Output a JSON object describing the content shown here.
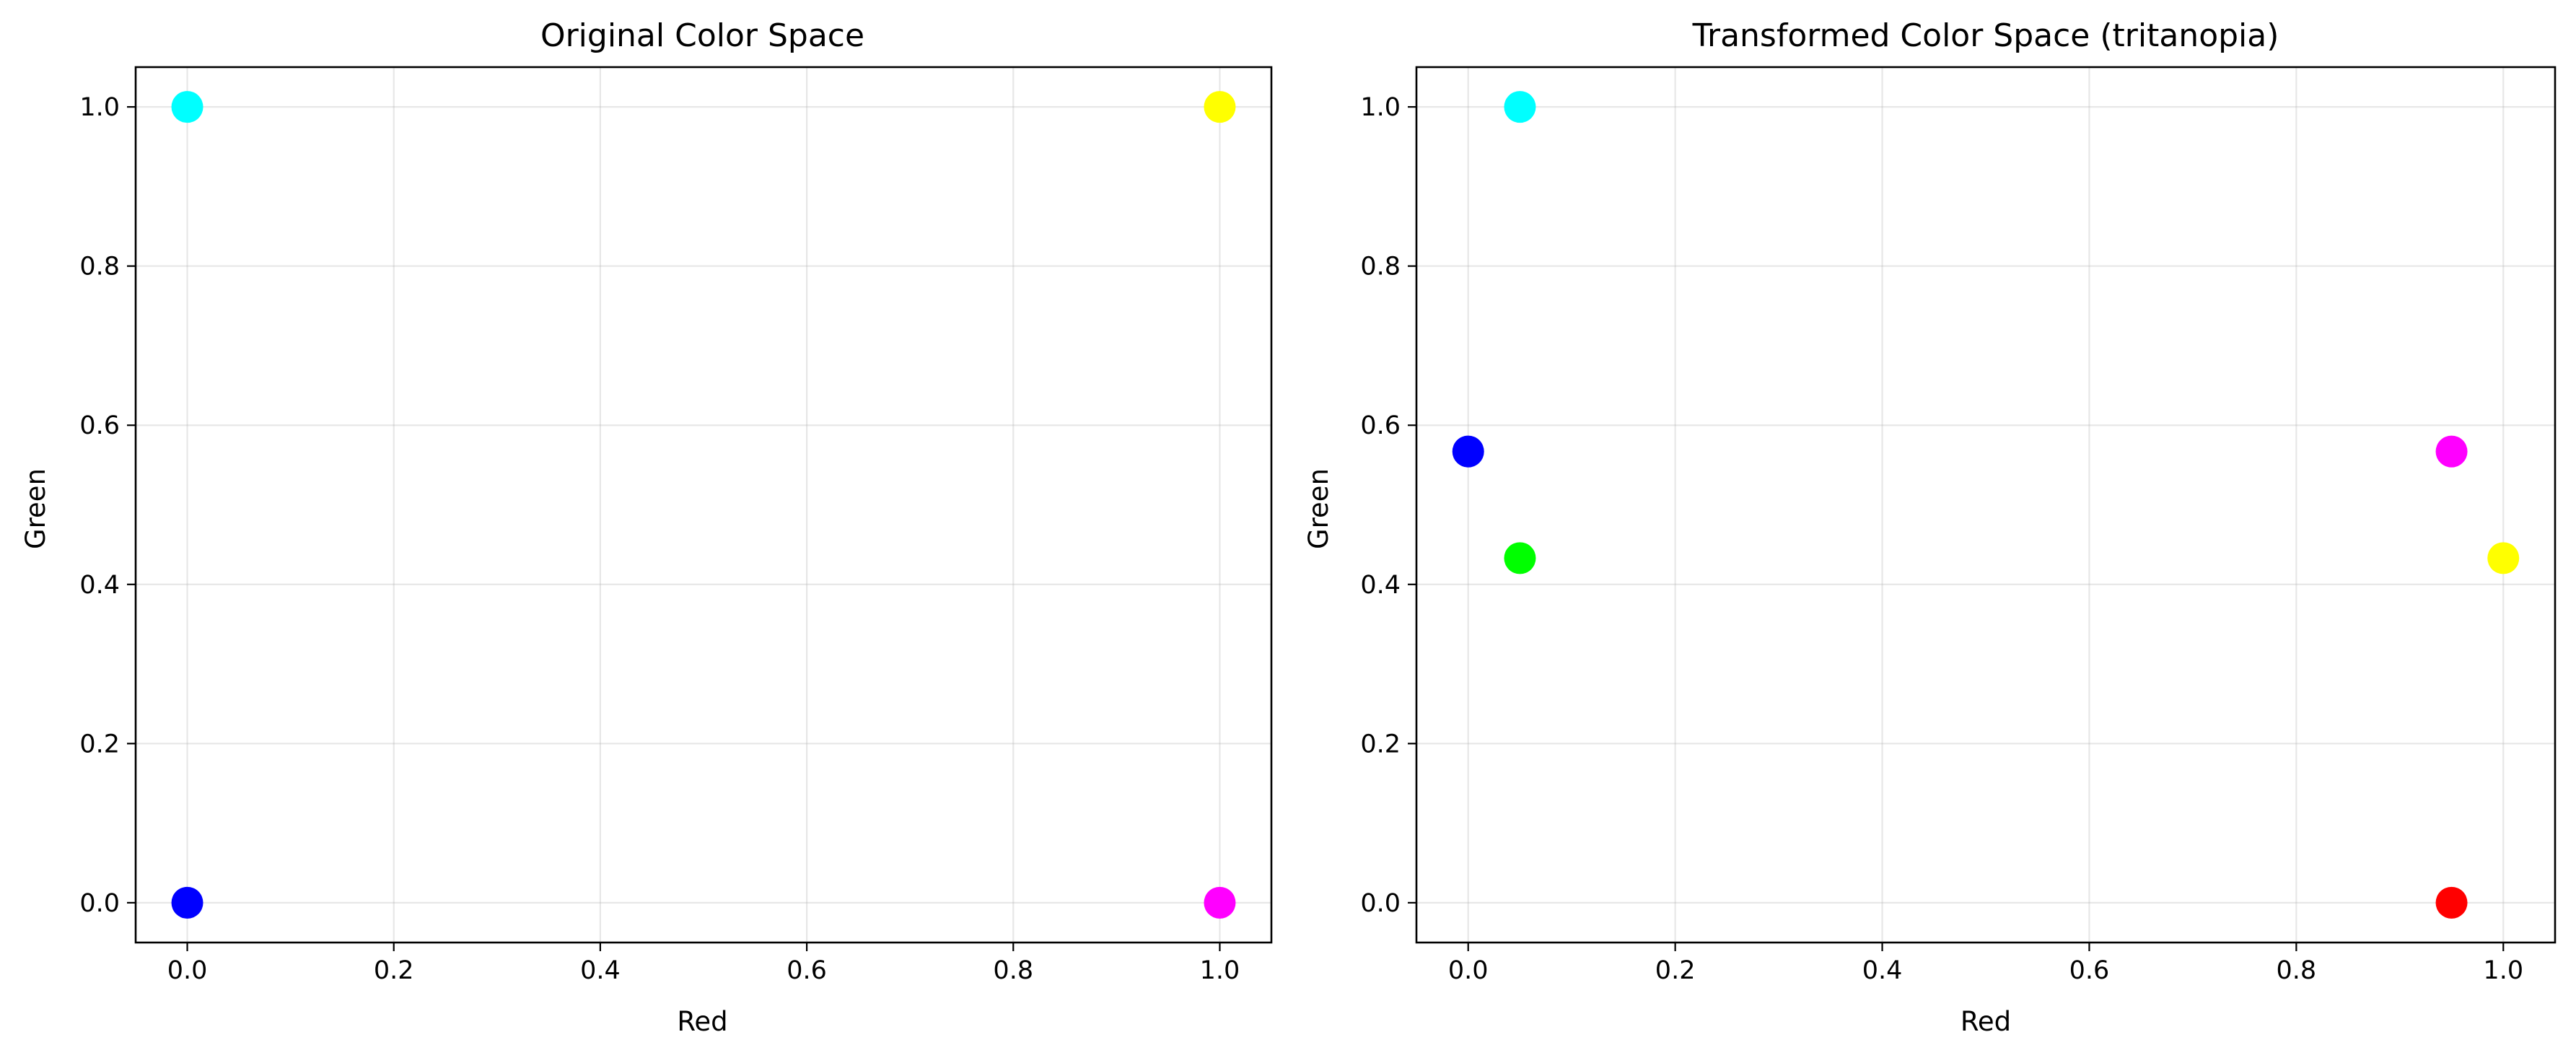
{
  "chart_data": [
    {
      "type": "scatter",
      "title": "Original Color Space",
      "xlabel": "Red",
      "ylabel": "Green",
      "xlim": [
        -0.05,
        1.05
      ],
      "ylim": [
        -0.05,
        1.05
      ],
      "xticks": [
        "0.0",
        "0.2",
        "0.4",
        "0.6",
        "0.8",
        "1.0"
      ],
      "yticks": [
        "0.0",
        "0.2",
        "0.4",
        "0.6",
        "0.8",
        "1.0"
      ],
      "grid": true,
      "points": [
        {
          "x": 0.0,
          "y": 1.0,
          "color": "#00ffff"
        },
        {
          "x": 1.0,
          "y": 1.0,
          "color": "#ffff00"
        },
        {
          "x": 0.0,
          "y": 0.0,
          "color": "#0000ff"
        },
        {
          "x": 1.0,
          "y": 0.0,
          "color": "#ff00ff"
        }
      ]
    },
    {
      "type": "scatter",
      "title": "Transformed Color Space (tritanopia)",
      "xlabel": "Red",
      "ylabel": "Green",
      "xlim": [
        -0.05,
        1.05
      ],
      "ylim": [
        -0.05,
        1.05
      ],
      "xticks": [
        "0.0",
        "0.2",
        "0.4",
        "0.6",
        "0.8",
        "1.0"
      ],
      "yticks": [
        "0.0",
        "0.2",
        "0.4",
        "0.6",
        "0.8",
        "1.0"
      ],
      "grid": true,
      "points": [
        {
          "x": 0.05,
          "y": 1.0,
          "color": "#00ffff"
        },
        {
          "x": 0.0,
          "y": 0.567,
          "color": "#0000ff"
        },
        {
          "x": 0.05,
          "y": 0.433,
          "color": "#00ff00"
        },
        {
          "x": 0.95,
          "y": 0.567,
          "color": "#ff00ff"
        },
        {
          "x": 1.0,
          "y": 0.433,
          "color": "#ffff00"
        },
        {
          "x": 0.95,
          "y": 0.0,
          "color": "#ff0000"
        }
      ]
    }
  ]
}
